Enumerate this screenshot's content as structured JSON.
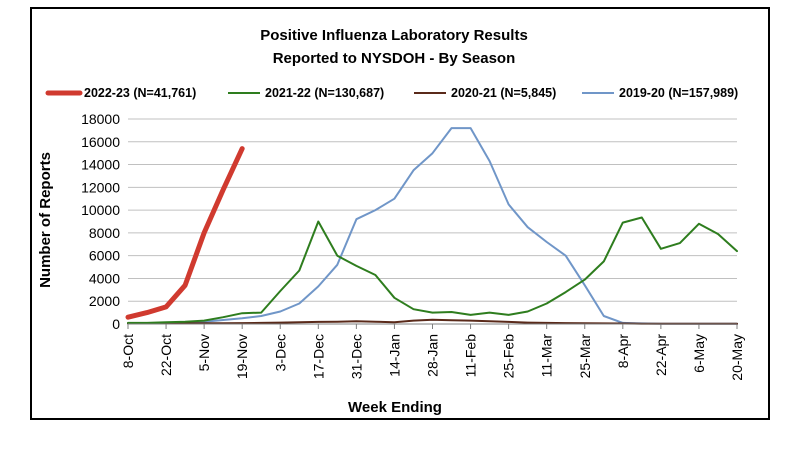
{
  "chart_data": {
    "type": "line",
    "title": [
      "Positive Influenza Laboratory Results",
      "Reported to NYSDOH - By Season"
    ],
    "xlabel": "Week Ending",
    "ylabel": "Number of Reports",
    "ylim": [
      0,
      18000
    ],
    "yticks": [
      0,
      2000,
      4000,
      6000,
      8000,
      10000,
      12000,
      14000,
      16000,
      18000
    ],
    "xtick_labels": [
      "8-Oct",
      "22-Oct",
      "5-Nov",
      "19-Nov",
      "3-Dec",
      "17-Dec",
      "31-Dec",
      "14-Jan",
      "28-Jan",
      "11-Feb",
      "25-Feb",
      "11-Mar",
      "25-Mar",
      "8-Apr",
      "22-Apr",
      "6-May",
      "20-May"
    ],
    "week_count": 33,
    "grid": "horizontal",
    "legend_position": "top",
    "series": [
      {
        "name": "2022-23 (N=41,761)",
        "color": "#d03a2f",
        "values": [
          600,
          1000,
          1500,
          3400,
          8000,
          11800,
          15400
        ]
      },
      {
        "name": "2021-22 (N=130,687)",
        "color": "#2e7d1e",
        "values": [
          100,
          100,
          150,
          200,
          300,
          600,
          950,
          1000,
          2900,
          4700,
          9000,
          6000,
          5100,
          4300,
          2300,
          1300,
          1000,
          1050,
          800,
          1000,
          800,
          1100,
          1800,
          2800,
          3900,
          5500,
          8900,
          9350,
          6600,
          7100,
          8800,
          7900,
          6400
        ]
      },
      {
        "name": "2020-21 (N=5,845)",
        "color": "#5a2a1a",
        "values": [
          50,
          50,
          50,
          60,
          60,
          70,
          80,
          100,
          120,
          150,
          180,
          200,
          250,
          200,
          150,
          300,
          380,
          330,
          300,
          250,
          180,
          120,
          100,
          80,
          60,
          50,
          40,
          30,
          20,
          20,
          20,
          20,
          20
        ]
      },
      {
        "name": "2019-20 (N=157,989)",
        "color": "#7096c8",
        "values": [
          50,
          50,
          80,
          120,
          200,
          350,
          500,
          700,
          1100,
          1800,
          3300,
          5200,
          9200,
          10000,
          11000,
          13500,
          15000,
          17200,
          17200,
          14300,
          10500,
          8500,
          7200,
          6000,
          3400,
          700,
          100,
          50,
          30,
          20,
          20,
          20,
          20
        ]
      }
    ]
  }
}
